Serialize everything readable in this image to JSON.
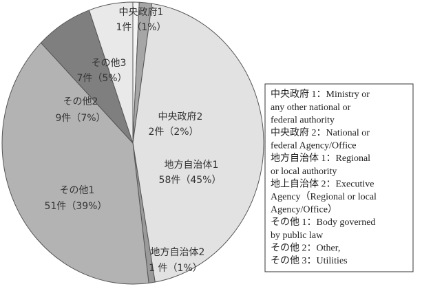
{
  "chart_data": {
    "type": "pie",
    "categories": [
      "中央政府1",
      "中央政府2",
      "地方自治体1",
      "地方自治体2",
      "その他1",
      "その他2",
      "その他3"
    ],
    "values": [
      1,
      2,
      58,
      1,
      51,
      9,
      7
    ],
    "value_labels": [
      "1件（1%）",
      "2件（2%）",
      "58件（45%）",
      "1 件（1%）",
      "51件（39%）",
      "9件（7%）",
      "7件（5%）"
    ],
    "colors": [
      "#f4f4f4",
      "#a6a6a6",
      "#e2e2e2",
      "#9a9a9a",
      "#b3b3b3",
      "#7f7f7f",
      "#e9e9e9"
    ],
    "legend": {
      "lines": [
        "中央政府 1：Ministry or",
        "any other national or",
        "federal authority",
        "中央政府 2：National or",
        "federal Agency/Office",
        "地方自治体 1：Regional",
        "or local authority",
        "地上自治体 2：Executive",
        "Agency（Regional or local",
        "Agency/Office）",
        "その他 1：Body governed",
        "by public law",
        "その他 2：Other,",
        "その他 3：Utilities"
      ]
    }
  }
}
